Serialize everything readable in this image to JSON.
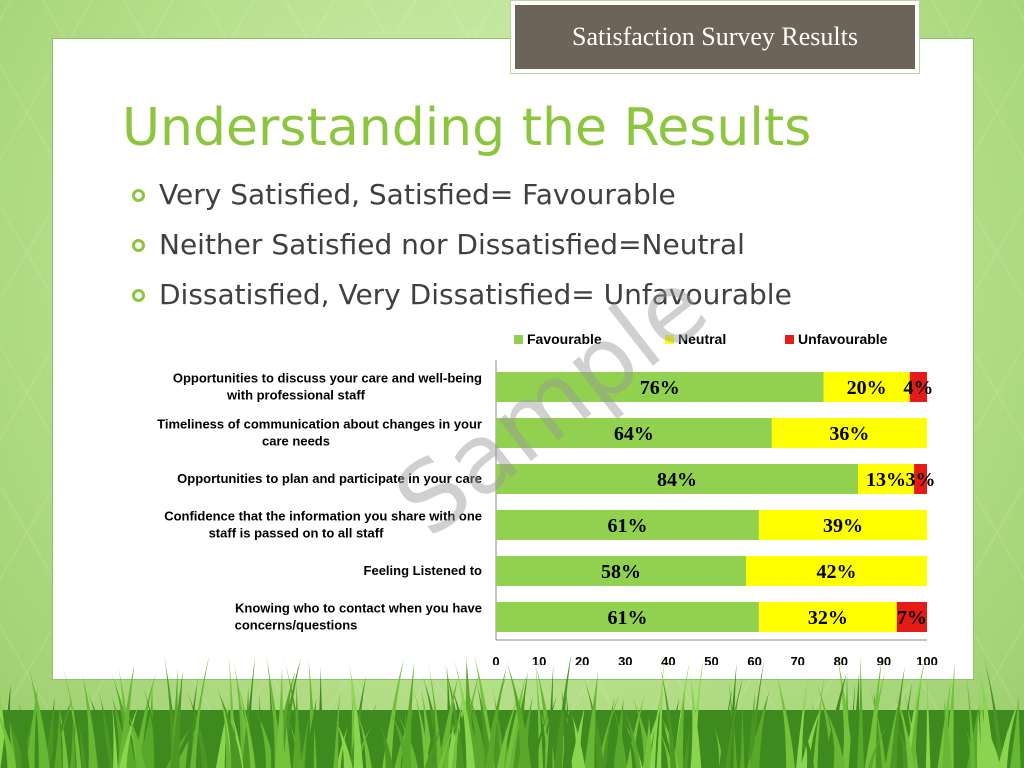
{
  "header": {
    "badge": "Satisfaction Survey Results"
  },
  "slide": {
    "title": "Understanding the Results",
    "bullets": [
      "Very Satisfied, Satisfied= Favourable",
      "Neither Satisfied nor Dissatisfied=Neutral",
      "Dissatisfied, Very Dissatisfied= Unfavourable"
    ]
  },
  "watermark": "Sample",
  "colors": {
    "favourable": "#92d050",
    "neutral": "#ffff00",
    "unfavourable": "#e41b17",
    "title": "#8cc63f"
  },
  "chart_data": {
    "type": "bar",
    "orientation": "horizontal",
    "stacked": true,
    "categories": [
      "Opportunities to discuss your care and well-being with professional staff",
      "Timeliness of communication about changes in your care needs",
      "Opportunities to plan and participate in your care",
      "Confidence that the information you share with one staff is passed on to all staff",
      "Feeling Listened to",
      "Knowing who to contact when you have concerns/questions"
    ],
    "series": [
      {
        "name": "Favourable",
        "values": [
          76,
          64,
          84,
          61,
          58,
          61
        ],
        "labels": [
          "76%",
          "64%",
          "84%",
          "61%",
          "58%",
          "61%"
        ]
      },
      {
        "name": "Neutral",
        "values": [
          20,
          36,
          13,
          39,
          42,
          32
        ],
        "labels": [
          "20%",
          "36%",
          "13%",
          "39%",
          "42%",
          "32%"
        ]
      },
      {
        "name": "Unfavourable",
        "values": [
          4,
          0,
          3,
          0,
          0,
          7
        ],
        "labels": [
          "4%",
          "",
          "3%",
          "",
          "",
          "7%"
        ]
      }
    ],
    "xlim": [
      0,
      100
    ],
    "xticks": [
      "0",
      "10",
      "20",
      "30",
      "40",
      "50",
      "60",
      "70",
      "80",
      "90",
      "100"
    ],
    "legend_position": "top"
  }
}
